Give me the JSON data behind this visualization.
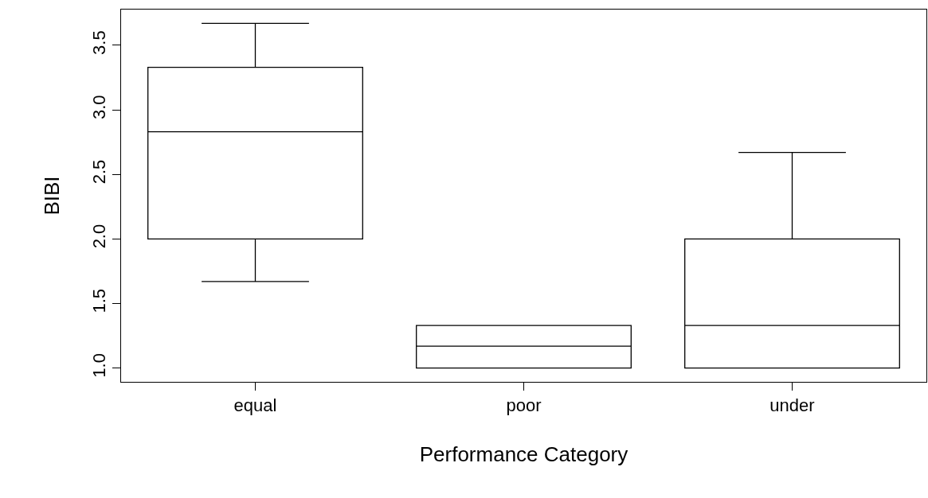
{
  "chart_data": {
    "type": "box",
    "xlabel": "Performance Category",
    "ylabel": "BIBI",
    "categories": [
      "equal",
      "poor",
      "under"
    ],
    "boxes": [
      {
        "low": 1.67,
        "q1": 2.0,
        "median": 2.83,
        "q3": 3.33,
        "high": 3.67
      },
      {
        "low": 1.0,
        "q1": 1.0,
        "median": 1.17,
        "q3": 1.33,
        "high": 1.33
      },
      {
        "low": 1.0,
        "q1": 1.0,
        "median": 1.33,
        "q3": 2.0,
        "high": 2.67
      }
    ],
    "color": "#000000",
    "ylim": [
      0.893,
      3.777
    ],
    "yticks": [
      {
        "value": 1,
        "label": "1.0"
      },
      1.5,
      {
        "value": 2,
        "label": "2.0"
      },
      2.5,
      {
        "value": 3,
        "label": "3.0"
      },
      3.5
    ]
  }
}
